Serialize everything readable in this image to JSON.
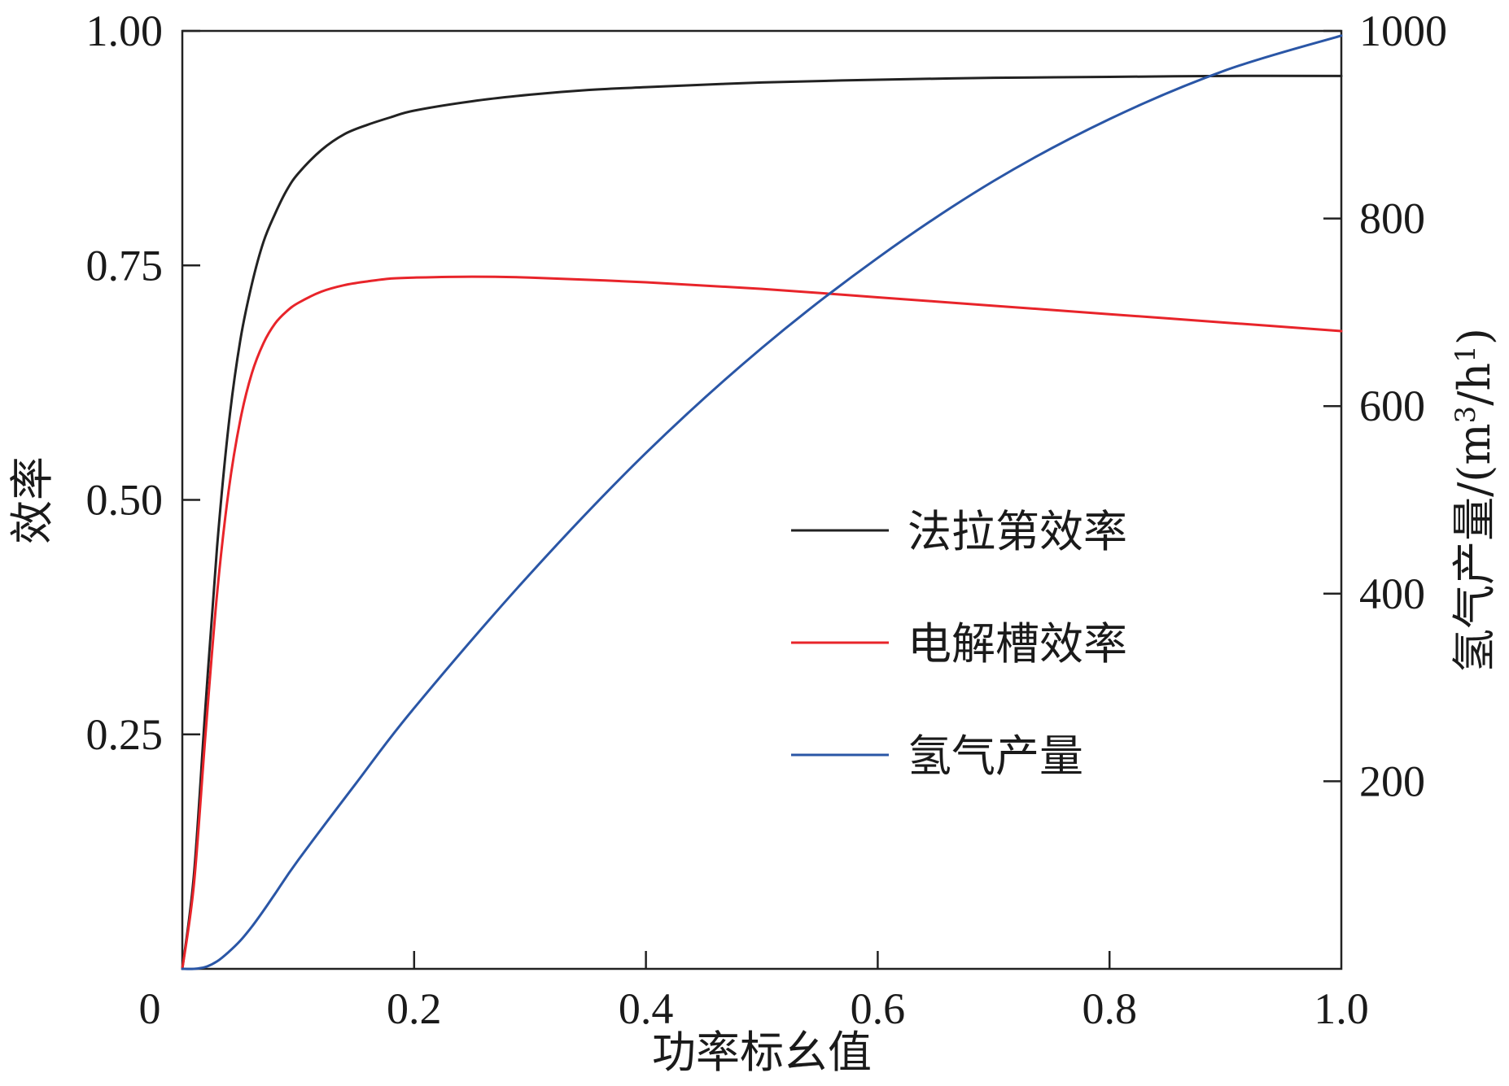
{
  "chart_data": {
    "type": "line",
    "xlabel": "功率标幺值",
    "ylabel_left": "效率",
    "ylabel_right_prefix": "氢气产量/(m",
    "ylabel_right_sup1": "3",
    "ylabel_right_mid": "/h",
    "ylabel_right_sup2": "1",
    "ylabel_right_suffix": ")",
    "xlim": [
      0,
      1.0
    ],
    "ylim_left": [
      0,
      1.0
    ],
    "ylim_right": [
      0,
      1000
    ],
    "x_ticks": [
      "0",
      "0.2",
      "0.4",
      "0.6",
      "0.8",
      "1.0"
    ],
    "x_tick_values": [
      0,
      0.2,
      0.4,
      0.6,
      0.8,
      1.0
    ],
    "y_left_ticks": [
      "0.25",
      "0.50",
      "0.75",
      "1.00"
    ],
    "y_left_tick_values": [
      0.25,
      0.5,
      0.75,
      1.0
    ],
    "y_right_ticks": [
      "200",
      "400",
      "600",
      "800",
      "1000"
    ],
    "y_right_tick_values": [
      200,
      400,
      600,
      800,
      1000
    ],
    "grid": false,
    "legend_position": "center-right",
    "series": [
      {
        "name": "法拉第效率",
        "axis": "left",
        "color": "#222222",
        "x": [
          0,
          0.01,
          0.02,
          0.03,
          0.04,
          0.05,
          0.06,
          0.07,
          0.08,
          0.09,
          0.1,
          0.12,
          0.14,
          0.16,
          0.18,
          0.2,
          0.25,
          0.3,
          0.35,
          0.4,
          0.5,
          0.6,
          0.7,
          0.8,
          0.9,
          1.0
        ],
        "y": [
          0,
          0.1,
          0.28,
          0.45,
          0.58,
          0.67,
          0.73,
          0.775,
          0.805,
          0.83,
          0.848,
          0.873,
          0.89,
          0.9,
          0.908,
          0.915,
          0.925,
          0.932,
          0.937,
          0.94,
          0.945,
          0.948,
          0.95,
          0.951,
          0.952,
          0.952
        ]
      },
      {
        "name": "电解槽效率",
        "axis": "left",
        "color": "#e8242a",
        "x": [
          0,
          0.01,
          0.02,
          0.03,
          0.04,
          0.05,
          0.06,
          0.07,
          0.08,
          0.09,
          0.1,
          0.12,
          0.14,
          0.16,
          0.18,
          0.2,
          0.25,
          0.3,
          0.4,
          0.5,
          0.6,
          0.7,
          0.8,
          0.9,
          1.0
        ],
        "y": [
          0,
          0.09,
          0.25,
          0.4,
          0.51,
          0.585,
          0.635,
          0.667,
          0.688,
          0.701,
          0.71,
          0.722,
          0.729,
          0.733,
          0.736,
          0.737,
          0.738,
          0.737,
          0.732,
          0.725,
          0.716,
          0.707,
          0.698,
          0.689,
          0.68
        ]
      },
      {
        "name": "氢气产量",
        "axis": "right",
        "color": "#2a56a6",
        "x": [
          0,
          0.01,
          0.02,
          0.03,
          0.04,
          0.05,
          0.06,
          0.07,
          0.08,
          0.1,
          0.15,
          0.2,
          0.3,
          0.4,
          0.5,
          0.6,
          0.7,
          0.8,
          0.9,
          1.0
        ],
        "y": [
          0,
          0,
          2,
          8,
          18,
          30,
          45,
          62,
          80,
          116,
          198,
          278,
          421,
          550,
          662,
          758,
          840,
          906,
          958,
          995
        ]
      }
    ]
  }
}
